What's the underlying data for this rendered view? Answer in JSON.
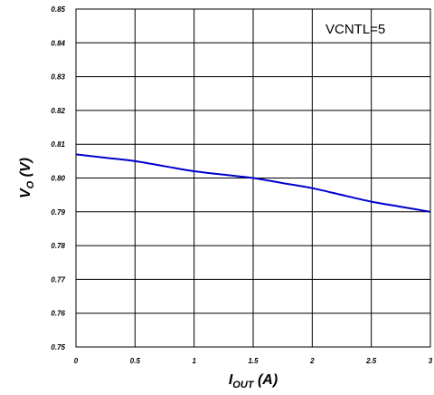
{
  "chart_data": {
    "type": "line",
    "title": "",
    "annotation": "VCNTL=5",
    "xlabel": {
      "main": "I",
      "sub": "OUT",
      "unit": " (A)"
    },
    "ylabel": {
      "main": "V",
      "sub": "O",
      "unit": " (V)"
    },
    "xlim": [
      0,
      3
    ],
    "ylim": [
      0.75,
      0.85
    ],
    "x_ticks": [
      0,
      0.5,
      1,
      1.5,
      2,
      2.5,
      3
    ],
    "x_tick_labels": [
      "0",
      "0.5",
      "1",
      "1.5",
      "2",
      "2.5",
      "3"
    ],
    "y_ticks": [
      0.75,
      0.76,
      0.77,
      0.78,
      0.79,
      0.8,
      0.81,
      0.82,
      0.83,
      0.84,
      0.85
    ],
    "y_tick_labels": [
      "0.75",
      "0.76",
      "0.77",
      "0.78",
      "0.79",
      "0.80",
      "0.81",
      "0.82",
      "0.83",
      "0.84",
      "0.85"
    ],
    "grid": true,
    "series": [
      {
        "color": "#0000cc",
        "x": [
          0,
          0.25,
          0.5,
          0.75,
          1.0,
          1.25,
          1.5,
          1.75,
          2.0,
          2.25,
          2.5,
          2.75,
          3.0
        ],
        "y": [
          0.807,
          0.806,
          0.805,
          0.8035,
          0.802,
          0.801,
          0.8,
          0.7985,
          0.797,
          0.795,
          0.793,
          0.7915,
          0.79
        ]
      }
    ]
  }
}
